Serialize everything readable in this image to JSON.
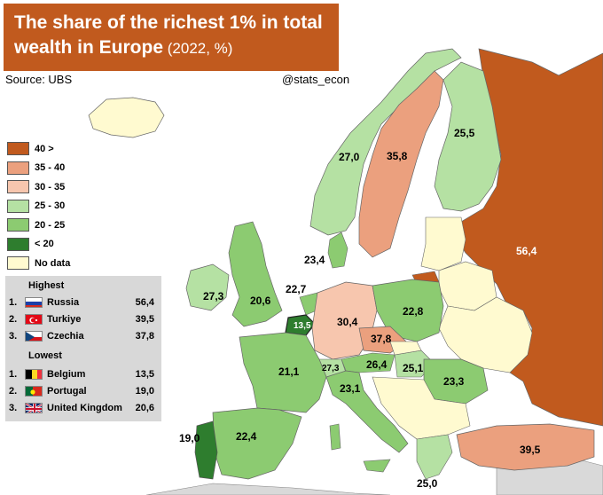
{
  "title": {
    "line1": "The share of the richest 1% in total",
    "line2_bold": "wealth in Europe",
    "line2_sub": " (2022, %)"
  },
  "source": "Source: UBS",
  "handle": "@stats_econ",
  "colors": {
    "c40": "#c15a1e",
    "c35_40": "#eba07e",
    "c30_35": "#f7c6ae",
    "c25_30": "#b5e1a3",
    "c20_25": "#8ccb71",
    "c_lt20": "#2e7d2e",
    "no_data": "#fffad0",
    "non_europe": "#d9d9d9",
    "sea": "#ffffff"
  },
  "legend": [
    {
      "label": "40 >",
      "color": "#c15a1e"
    },
    {
      "label": "35 - 40",
      "color": "#eba07e"
    },
    {
      "label": "30 - 35",
      "color": "#f7c6ae"
    },
    {
      "label": "25 - 30",
      "color": "#b5e1a3"
    },
    {
      "label": "20 - 25",
      "color": "#8ccb71"
    },
    {
      "label": "< 20",
      "color": "#2e7d2e"
    },
    {
      "label": "No data",
      "color": "#fffad0"
    }
  ],
  "ranking": {
    "highest_title": "Highest",
    "highest": [
      {
        "rank": "1.",
        "flag": "russia-flag",
        "country": "Russia",
        "value": "56,4"
      },
      {
        "rank": "2.",
        "flag": "turkey-flag",
        "country": "Turkiye",
        "value": "39,5"
      },
      {
        "rank": "3.",
        "flag": "czech-flag",
        "country": "Czechia",
        "value": "37,8"
      }
    ],
    "lowest_title": "Lowest",
    "lowest": [
      {
        "rank": "1.",
        "flag": "belgium-flag",
        "country": "Belgium",
        "value": "13,5"
      },
      {
        "rank": "2.",
        "flag": "portugal-flag",
        "country": "Portugal",
        "value": "19,0"
      },
      {
        "rank": "3.",
        "flag": "uk-flag",
        "country": "United Kingdom",
        "value": "20,6"
      }
    ]
  },
  "map_values": {
    "russia": "56,4",
    "turkey": "39,5",
    "norway": "27,0",
    "sweden": "35,8",
    "finland": "25,5",
    "ireland": "27,3",
    "uk": "20,6",
    "netherlands": "22,7",
    "denmark": "23,4",
    "belgium": "13,5",
    "germany": "30,4",
    "poland": "22,8",
    "czechia": "37,8",
    "austria": "26,4",
    "switzerland": "27,3",
    "hungary": "25,1",
    "france": "21,1",
    "italy": "23,1",
    "romania": "23,3",
    "spain": "22,4",
    "portugal": "19,0",
    "greece": "25,0"
  }
}
